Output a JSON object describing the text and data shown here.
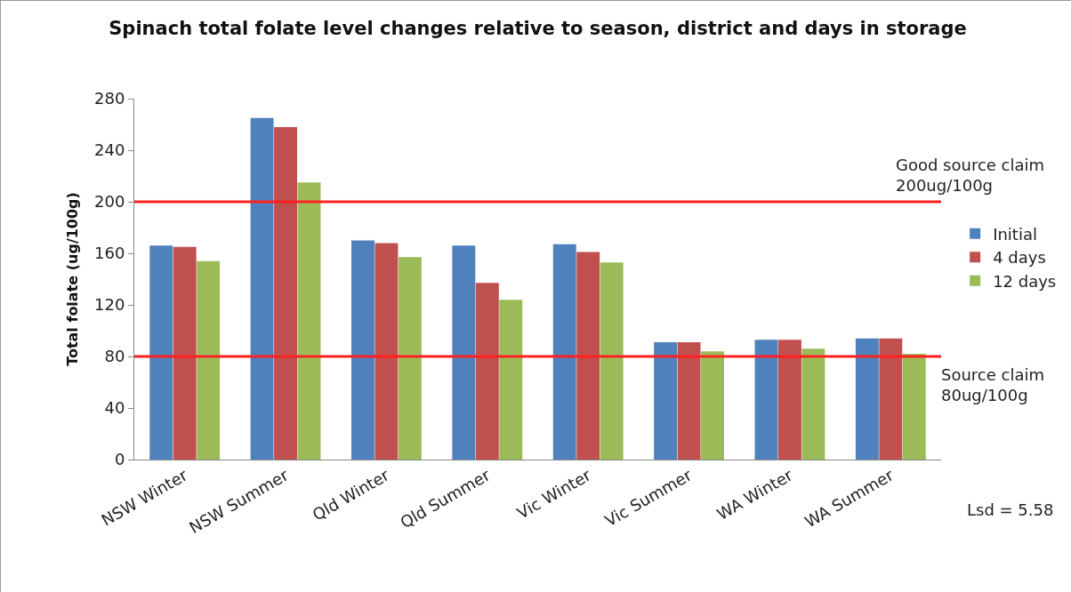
{
  "chart_data": {
    "type": "bar",
    "title": "Spinach total folate level changes relative to season, district and days in storage",
    "ylabel": "Total folate (ug/100g)",
    "categories": [
      "NSW Winter",
      "NSW Summer",
      "Qld Winter",
      "Qld Summer",
      "Vic Winter",
      "Vic Summer",
      "WA Winter",
      "WA Summer"
    ],
    "series": [
      {
        "name": "Initial",
        "color": "#4f81bd",
        "values": [
          166,
          265,
          170,
          166,
          167,
          91,
          93,
          94
        ]
      },
      {
        "name": "4 days",
        "color": "#c0504d",
        "values": [
          165,
          258,
          168,
          137,
          161,
          91,
          93,
          94
        ]
      },
      {
        "name": "12 days",
        "color": "#9bbb59",
        "values": [
          154,
          215,
          157,
          124,
          153,
          84,
          86,
          82
        ]
      }
    ],
    "ylim": [
      0,
      280
    ],
    "yticks": [
      0,
      40,
      80,
      120,
      160,
      200,
      240,
      280
    ],
    "ref_lines": [
      {
        "axis": "y",
        "value": 200,
        "label": "Good source claim 200ug/100g",
        "color": "#ff2020"
      },
      {
        "axis": "y",
        "value": 80,
        "label": "Source claim 80ug/100g",
        "color": "#ff2020"
      }
    ],
    "annotations": [
      "Lsd = 5.58"
    ],
    "legend": "right",
    "grid": false
  }
}
